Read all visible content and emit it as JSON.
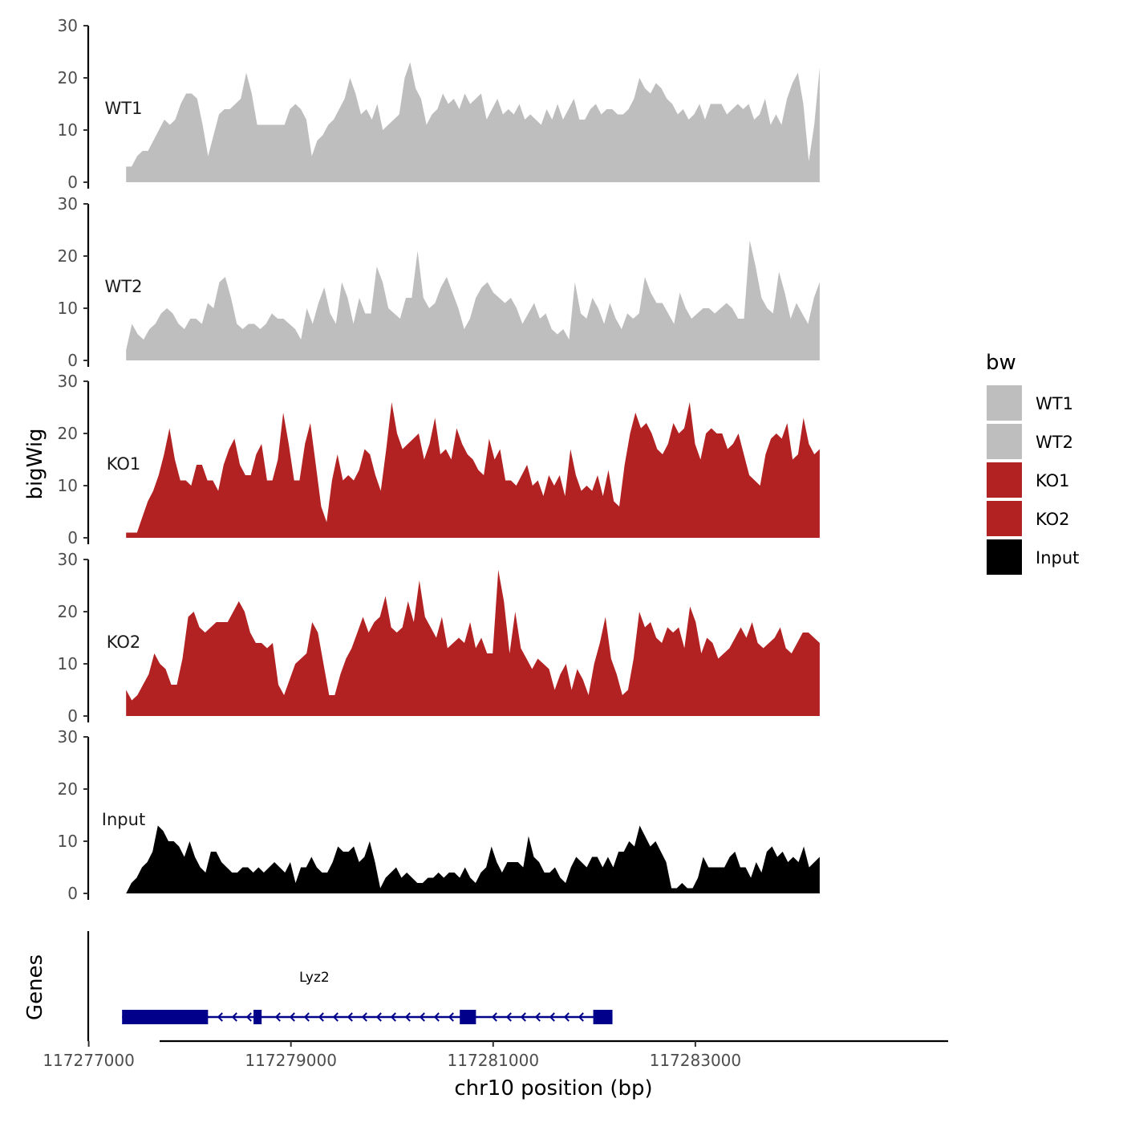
{
  "chart_data": {
    "type": "area",
    "y_axis_label": "bigWig",
    "x_axis_label": "chr10 position (bp)",
    "genes_axis_label": "Genes",
    "xlim": [
      117276900,
      117285500
    ],
    "x_ticks": [
      117277000,
      117279000,
      117281000,
      117283000
    ],
    "x_tick_labels": [
      "117277000",
      "117279000",
      "117281000",
      "117283000"
    ],
    "ylim": [
      0,
      30
    ],
    "y_ticks": [
      0,
      10,
      20,
      30
    ],
    "y_tick_labels": [
      "0",
      "10",
      "20",
      "30"
    ],
    "legend": {
      "title": "bw",
      "position": "right",
      "entries": [
        {
          "label": "WT1",
          "color": "#bebebe"
        },
        {
          "label": "WT2",
          "color": "#bebebe"
        },
        {
          "label": "KO1",
          "color": "#b22222"
        },
        {
          "label": "KO2",
          "color": "#b22222"
        },
        {
          "label": "Input",
          "color": "#000000"
        }
      ]
    },
    "x_start": 117277370,
    "x_end": 117284230,
    "series": [
      {
        "name": "WT1",
        "color": "#bebebe",
        "values": [
          3,
          3,
          5,
          6,
          6,
          8,
          10,
          12,
          11,
          12,
          15,
          17,
          17,
          16,
          11,
          5,
          9,
          13,
          14,
          14,
          15,
          16,
          21,
          17,
          11,
          11,
          11,
          11,
          11,
          11,
          14,
          15,
          14,
          12,
          5,
          8,
          9,
          11,
          12,
          14,
          16,
          20,
          17,
          13,
          14,
          12,
          15,
          10,
          11,
          12,
          13,
          20,
          23,
          18,
          16,
          11,
          13,
          14,
          17,
          15,
          16,
          14,
          17,
          15,
          16,
          17,
          12,
          14,
          16,
          13,
          14,
          13,
          15,
          12,
          13,
          12,
          11,
          14,
          12,
          15,
          12,
          14,
          16,
          12,
          12,
          14,
          15,
          13,
          14,
          14,
          13,
          13,
          14,
          16,
          20,
          18,
          17,
          19,
          18,
          16,
          15,
          13,
          14,
          12,
          13,
          15,
          12,
          15,
          15,
          15,
          13,
          14,
          15,
          14,
          15,
          12,
          13,
          16,
          11,
          13,
          11,
          16,
          19,
          21,
          15,
          4,
          11,
          22
        ]
      },
      {
        "name": "WT2",
        "color": "#bebebe",
        "values": [
          2,
          7,
          5,
          4,
          6,
          7,
          9,
          10,
          9,
          7,
          6,
          8,
          8,
          7,
          11,
          10,
          15,
          16,
          12,
          7,
          6,
          7,
          7,
          6,
          7,
          9,
          8,
          8,
          7,
          6,
          4,
          10,
          7,
          11,
          14,
          9,
          7,
          15,
          12,
          7,
          12,
          9,
          9,
          18,
          15,
          10,
          9,
          8,
          12,
          12,
          21,
          12,
          10,
          11,
          14,
          16,
          13,
          10,
          6,
          8,
          12,
          14,
          15,
          13,
          12,
          11,
          12,
          10,
          7,
          9,
          11,
          8,
          9,
          6,
          5,
          6,
          4,
          15,
          9,
          8,
          12,
          10,
          7,
          11,
          8,
          6,
          9,
          8,
          9,
          16,
          13,
          11,
          11,
          9,
          7,
          13,
          10,
          8,
          9,
          10,
          10,
          9,
          10,
          11,
          10,
          8,
          8,
          23,
          18,
          12,
          10,
          9,
          17,
          13,
          8,
          11,
          9,
          7,
          12,
          15
        ]
      },
      {
        "name": "KO1",
        "color": "#b22222",
        "values": [
          1,
          1,
          1,
          4,
          7,
          9,
          12,
          16,
          21,
          15,
          11,
          11,
          10,
          14,
          14,
          11,
          11,
          9,
          14,
          17,
          19,
          14,
          12,
          12,
          16,
          18,
          11,
          11,
          15,
          24,
          18,
          11,
          11,
          18,
          22,
          14,
          6,
          3,
          11,
          16,
          11,
          12,
          11,
          13,
          17,
          16,
          12,
          9,
          17,
          26,
          20,
          17,
          18,
          19,
          20,
          15,
          18,
          23,
          16,
          17,
          15,
          21,
          18,
          16,
          15,
          13,
          12,
          19,
          15,
          17,
          11,
          11,
          10,
          12,
          14,
          10,
          11,
          8,
          12,
          10,
          12,
          8,
          17,
          12,
          9,
          10,
          9,
          12,
          8,
          13,
          7,
          6,
          14,
          20,
          24,
          21,
          22,
          20,
          17,
          16,
          18,
          22,
          20,
          21,
          26,
          18,
          15,
          20,
          21,
          20,
          20,
          17,
          18,
          20,
          16,
          12,
          11,
          10,
          16,
          19,
          20,
          19,
          22,
          15,
          16,
          23,
          18,
          16,
          17
        ]
      },
      {
        "name": "KO2",
        "color": "#b22222",
        "values": [
          5,
          3,
          4,
          6,
          8,
          12,
          10,
          9,
          6,
          6,
          11,
          19,
          20,
          17,
          16,
          17,
          18,
          18,
          18,
          20,
          22,
          20,
          16,
          14,
          14,
          13,
          14,
          6,
          4,
          7,
          10,
          11,
          12,
          18,
          16,
          10,
          4,
          4,
          8,
          11,
          13,
          16,
          19,
          16,
          18,
          19,
          23,
          17,
          16,
          17,
          22,
          18,
          26,
          19,
          17,
          15,
          19,
          13,
          14,
          15,
          14,
          18,
          13,
          15,
          12,
          12,
          28,
          22,
          12,
          20,
          13,
          11,
          9,
          11,
          10,
          9,
          5,
          8,
          10,
          5,
          9,
          7,
          4,
          10,
          14,
          19,
          11,
          8,
          4,
          5,
          11,
          20,
          17,
          18,
          15,
          14,
          17,
          16,
          17,
          13,
          21,
          18,
          12,
          15,
          14,
          11,
          12,
          13,
          15,
          17,
          15,
          18,
          14,
          13,
          14,
          15,
          17,
          13,
          12,
          14,
          16,
          16,
          15,
          14
        ]
      },
      {
        "name": "Input",
        "color": "#000000",
        "values": [
          0,
          2,
          3,
          5,
          6,
          8,
          13,
          12,
          10,
          10,
          9,
          7,
          10,
          7,
          5,
          4,
          8,
          8,
          6,
          5,
          4,
          4,
          5,
          5,
          4,
          5,
          4,
          5,
          6,
          5,
          4,
          6,
          2,
          5,
          5,
          7,
          5,
          4,
          4,
          6,
          9,
          8,
          8,
          9,
          6,
          7,
          10,
          6,
          1,
          3,
          4,
          5,
          3,
          4,
          3,
          2,
          2,
          3,
          3,
          4,
          3,
          4,
          4,
          3,
          5,
          3,
          2,
          4,
          5,
          9,
          6,
          4,
          6,
          6,
          6,
          5,
          11,
          7,
          6,
          4,
          4,
          5,
          3,
          2,
          5,
          7,
          6,
          5,
          7,
          7,
          5,
          7,
          5,
          8,
          8,
          10,
          9,
          13,
          11,
          9,
          10,
          8,
          6,
          1,
          1,
          2,
          1,
          1,
          3,
          7,
          5,
          5,
          5,
          5,
          7,
          8,
          5,
          5,
          3,
          6,
          4,
          8,
          9,
          7,
          8,
          6,
          7,
          6,
          9,
          5,
          6,
          7
        ]
      }
    ],
    "genes": [
      {
        "name": "Lyz2",
        "strand": "-",
        "start": 117277330,
        "end": 117282180,
        "exons": [
          [
            117277330,
            117278180
          ],
          [
            117278630,
            117278710
          ],
          [
            117280670,
            117280830
          ],
          [
            117281990,
            117282180
          ]
        ]
      }
    ]
  }
}
